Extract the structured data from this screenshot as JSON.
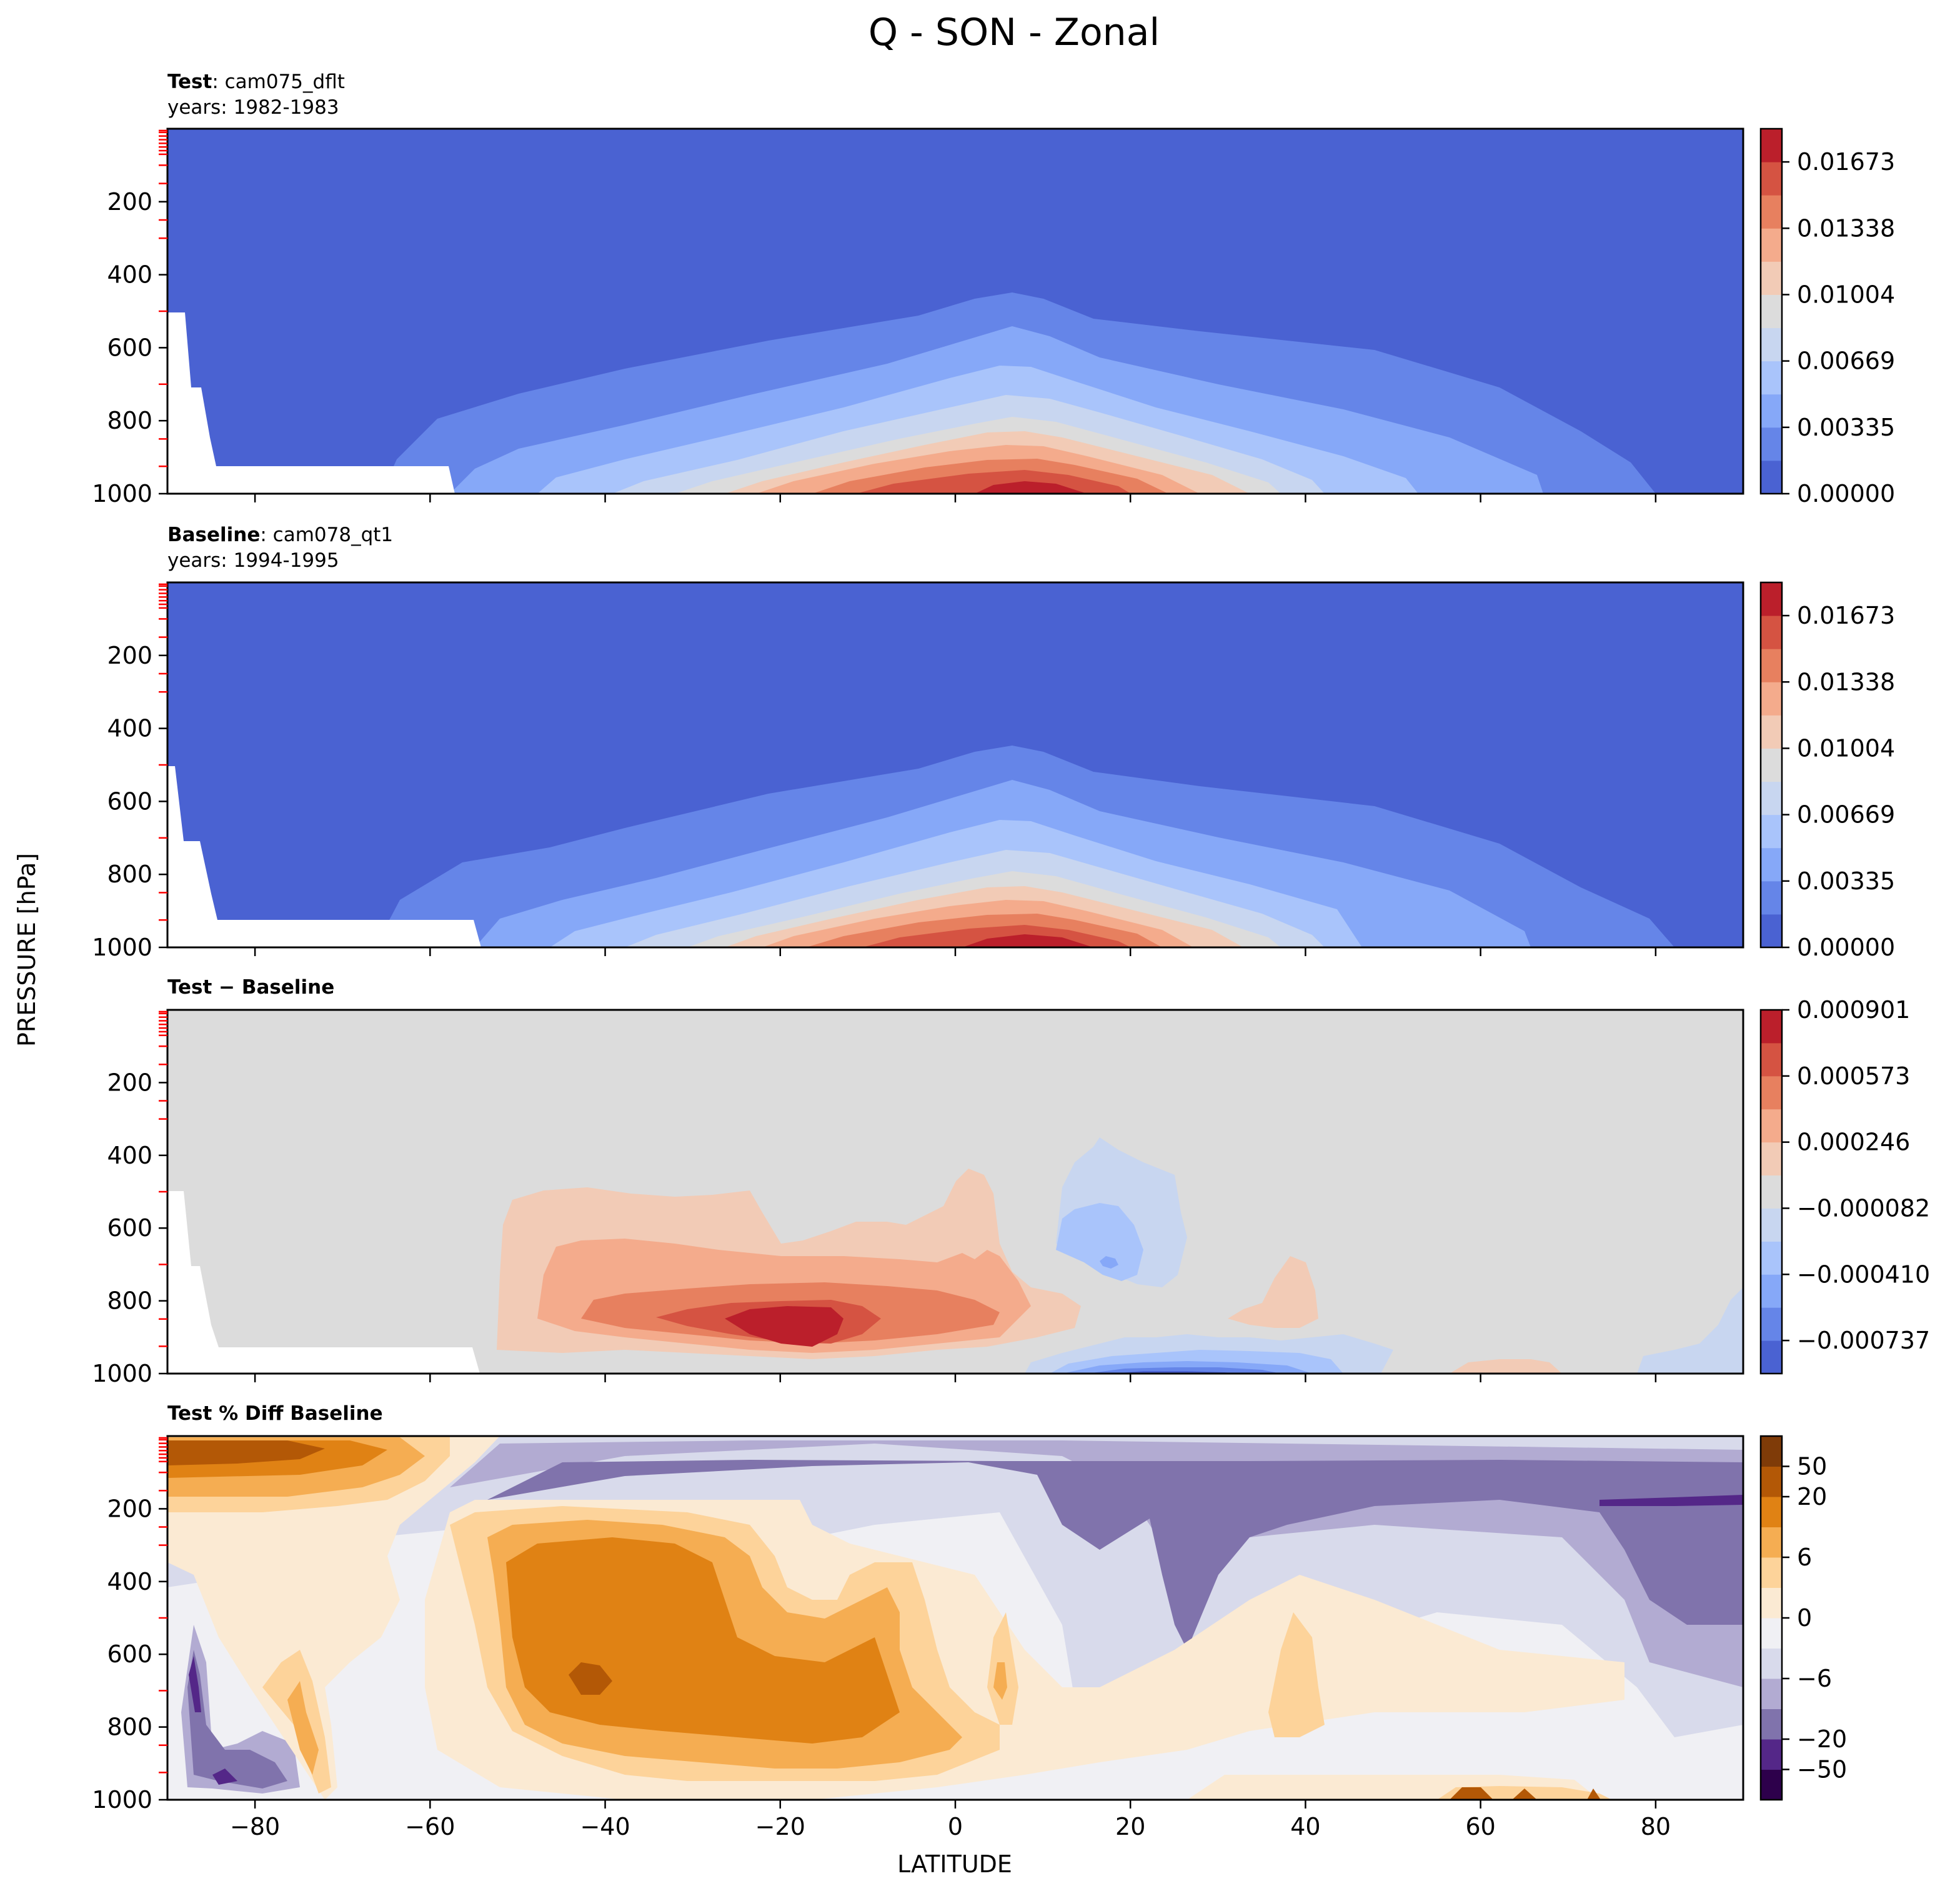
{
  "figure": {
    "title": "Q - SON - Zonal",
    "ylabel": "PRESSURE [hPa]",
    "xlabel": "LATITUDE"
  },
  "panels": [
    {
      "id": "test",
      "header_bold": "Test",
      "header_rest": ": cam075_dflt",
      "header_line2": "years: 1982-1983",
      "colorbar_ticks": [
        "0.01673",
        "0.01338",
        "0.01004",
        "0.00669",
        "0.00335",
        "0.00000"
      ]
    },
    {
      "id": "baseline",
      "header_bold": "Baseline",
      "header_rest": ": cam078_qt1",
      "header_line2": "years: 1994-1995",
      "colorbar_ticks": [
        "0.01673",
        "0.01338",
        "0.01004",
        "0.00669",
        "0.00335",
        "0.00000"
      ]
    },
    {
      "id": "diff",
      "header_bold": "Test − Baseline",
      "header_rest": "",
      "header_line2": "",
      "colorbar_ticks": [
        "0.000901",
        "0.000573",
        "0.000246",
        "−0.000082",
        "−0.000410",
        "−0.000737"
      ]
    },
    {
      "id": "pctdiff",
      "header_bold": "Test % Diff Baseline",
      "header_rest": "",
      "header_line2": "",
      "colorbar_ticks": [
        "50",
        "20",
        "6",
        "0",
        "−6",
        "−20",
        "−50"
      ]
    }
  ],
  "colors": {
    "coolwarm": [
      "#4a62d2",
      "#6585e8",
      "#86a8f8",
      "#a9c4fb",
      "#c8d6f0",
      "#dcdcdc",
      "#f2cbb6",
      "#f4ab8c",
      "#e7805f",
      "#d55342",
      "#bb1f2b"
    ],
    "puor": [
      "#2d004b",
      "#542788",
      "#8073ac",
      "#b2abd2",
      "#d8daeb",
      "#f0f0f4",
      "#fbead3",
      "#fdd39a",
      "#f5ad52",
      "#e08214",
      "#b35806",
      "#7f3b08"
    ]
  },
  "chart_data": [
    {
      "type": "contour",
      "panel": "Test",
      "title": "Test: cam075_dflt",
      "xlabel": "LATITUDE",
      "ylabel": "PRESSURE [hPa]",
      "xlim": [
        -90,
        90
      ],
      "ylim": [
        1000,
        0
      ],
      "xticks": [
        -80,
        -60,
        -40,
        -20,
        0,
        20,
        40,
        60,
        80
      ],
      "yticks": [
        200,
        400,
        600,
        800,
        1000
      ],
      "levels": [
        0.0,
        0.00167,
        0.00335,
        0.00502,
        0.00669,
        0.00837,
        0.01004,
        0.01171,
        0.01338,
        0.01506,
        0.01673,
        0.0184
      ],
      "colorbar_ticks": [
        0.0,
        0.00335,
        0.00669,
        0.01004,
        0.01338,
        0.01673
      ],
      "peak": {
        "lat": 7,
        "pressure": 1000,
        "value": 0.017
      },
      "shape": "maximum near surface at 5-10N, decreasing poleward and upward; near zero above 450 hPa"
    },
    {
      "type": "contour",
      "panel": "Baseline",
      "title": "Baseline: cam078_qt1",
      "xlabel": "LATITUDE",
      "ylabel": "PRESSURE [hPa]",
      "xlim": [
        -90,
        90
      ],
      "ylim": [
        1000,
        0
      ],
      "xticks": [
        -80,
        -60,
        -40,
        -20,
        0,
        20,
        40,
        60,
        80
      ],
      "yticks": [
        200,
        400,
        600,
        800,
        1000
      ],
      "levels": [
        0.0,
        0.00167,
        0.00335,
        0.00502,
        0.00669,
        0.00837,
        0.01004,
        0.01171,
        0.01338,
        0.01506,
        0.01673,
        0.0184
      ],
      "colorbar_ticks": [
        0.0,
        0.00335,
        0.00669,
        0.01004,
        0.01338,
        0.01673
      ],
      "peak": {
        "lat": 7,
        "pressure": 1000,
        "value": 0.017
      },
      "shape": "nearly identical to Test"
    },
    {
      "type": "contour",
      "panel": "Test − Baseline",
      "xlabel": "LATITUDE",
      "ylabel": "PRESSURE [hPa]",
      "xlim": [
        -90,
        90
      ],
      "ylim": [
        1000,
        0
      ],
      "levels": [
        -0.000901,
        -0.000737,
        -0.000573,
        -0.00041,
        -0.000246,
        -8.2e-05,
        8.2e-05,
        0.000246,
        0.00041,
        0.000573,
        0.000737,
        0.000901
      ],
      "colorbar_ticks": [
        -0.000737,
        -0.00041,
        -8.2e-05,
        0.000246,
        0.000573,
        0.000901
      ],
      "features": [
        {
          "sign": "positive",
          "lat_range": [
            -52,
            8
          ],
          "pressure_range": [
            500,
            950
          ],
          "max_at": {
            "lat": -18,
            "pressure": 850,
            "value": 0.0009
          }
        },
        {
          "sign": "negative",
          "lat_range": [
            6,
            46
          ],
          "pressure_range": [
            940,
            1000
          ],
          "min_at": {
            "lat": 20,
            "pressure": 990,
            "value": -0.0008
          }
        },
        {
          "sign": "negative",
          "lat_range": [
            11,
            27
          ],
          "pressure_range": [
            370,
            800
          ],
          "min_at": {
            "lat": 19,
            "pressure": 680,
            "value": -0.0003
          }
        }
      ]
    },
    {
      "type": "contour",
      "panel": "Test % Diff Baseline",
      "xlabel": "LATITUDE",
      "ylabel": "PRESSURE [hPa]",
      "xlim": [
        -90,
        90
      ],
      "ylim": [
        1000,
        0
      ],
      "levels": [
        -100,
        -50,
        -20,
        -10,
        -6,
        -2,
        0,
        2,
        6,
        10,
        20,
        50,
        100
      ],
      "colorbar_ticks": [
        -50,
        -20,
        -6,
        0,
        6,
        20,
        50
      ],
      "features": [
        {
          "sign": "positive",
          "lat_range": [
            -90,
            -58
          ],
          "pressure_range": [
            0,
            180
          ],
          "value": 50
        },
        {
          "sign": "positive",
          "lat_range": [
            -55,
            -5
          ],
          "pressure_range": [
            230,
            900
          ],
          "value": 20
        },
        {
          "sign": "negative",
          "lat_range": [
            -60,
            90
          ],
          "pressure_range": [
            60,
            350
          ],
          "value": -20
        },
        {
          "sign": "negative",
          "lat_range": [
            10,
            35
          ],
          "pressure_range": [
            300,
            800
          ],
          "value": -20
        },
        {
          "sign": "negative",
          "lat_range": [
            -87,
            -80
          ],
          "pressure_range": [
            800,
            950
          ],
          "value": -50
        }
      ]
    }
  ]
}
